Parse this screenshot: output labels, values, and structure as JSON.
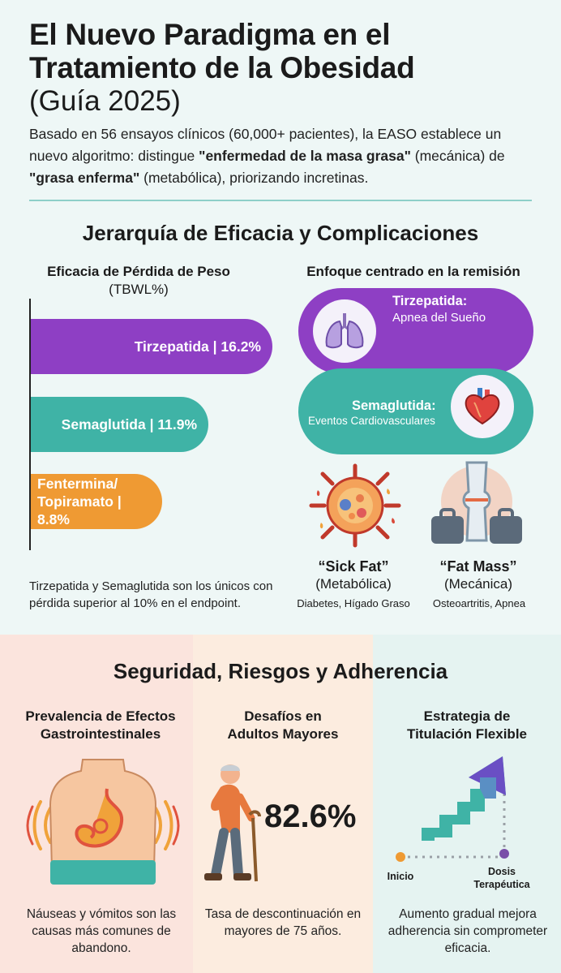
{
  "header": {
    "title_line1": "El Nuevo Paradigma en el",
    "title_line2": "Tratamiento de la Obesidad",
    "title_line3": "(Guía 2025)",
    "intro_a": "Basado en 56 ensayos clínicos (60,000+ pacientes), la EASO establece un nuevo algoritmo: distingue ",
    "intro_b": "\"enfermedad de la masa grasa\"",
    "intro_c": " (mecánica) de ",
    "intro_d": "\"grasa enferma\"",
    "intro_e": " (metabólica), priorizando incretinas."
  },
  "section1": {
    "heading": "Jerarquía de Eficacia y Complicaciones",
    "left_title": "Eficacia de Pérdida de Peso",
    "left_subtitle": "(TBWL%)",
    "note": "Tirzepatida y Semaglutida son los únicos con pérdida superior al 10% en el endpoint.",
    "right_title": "Enfoque centrado en la remisión",
    "remission": [
      {
        "drug": "Tirzepatida:",
        "focus": "Apnea del Sueño",
        "icon": "lungs-icon"
      },
      {
        "drug": "Semaglutida:",
        "focus": "Eventos Cardiovasculares",
        "icon": "heart-icon"
      }
    ],
    "fat_types": [
      {
        "label": "“Sick Fat”",
        "kind": "(Metabólica)",
        "examples": "Diabetes, Hígado Graso",
        "icon": "fat-cell-icon"
      },
      {
        "label": "“Fat Mass”",
        "kind": "(Mecánica)",
        "examples": "Osteoartritis, Apnea",
        "icon": "knee-weight-icon"
      }
    ]
  },
  "chart_data": {
    "type": "bar",
    "orientation": "horizontal",
    "categories": [
      "Tirzepatida",
      "Semaglutida",
      "Fentermina/Topiramato"
    ],
    "values": [
      16.2,
      11.9,
      8.8
    ],
    "labels": [
      "Tirzepatida | 16.2%",
      "Semaglutida | 11.9%"
    ],
    "label3_line1": "Fentermina/",
    "label3_line2": "Topiramato | 8.8%",
    "colors": [
      "#8e3fc4",
      "#3fb3a6",
      "#ef9a33"
    ]
  },
  "section2": {
    "heading": "Seguridad, Riesgos y Adherencia",
    "col1": {
      "title_l1": "Prevalencia de Efectos",
      "title_l2": "Gastrointestinales",
      "text": "Náuseas y vómitos son las causas más comunes de abandono.",
      "icon": "stomach-icon"
    },
    "col2": {
      "title_l1": "Desafíos en",
      "title_l2": "Adultos Mayores",
      "value": "82.6%",
      "text": "Tasa de descontinuación en mayores de 75 años.",
      "icon": "elderly-person-icon"
    },
    "col3": {
      "title_l1": "Estrategia de",
      "title_l2": "Titulación Flexible",
      "start": "Inicio",
      "end_l1": "Dosis",
      "end_l2": "Terapéutica",
      "text": "Aumento gradual mejora adherencia sin comprometer eficacia.",
      "icon": "step-arrow-icon"
    }
  },
  "colors": {
    "purple": "#8e3fc4",
    "teal": "#3fb3a6",
    "orange": "#ef9a33"
  }
}
